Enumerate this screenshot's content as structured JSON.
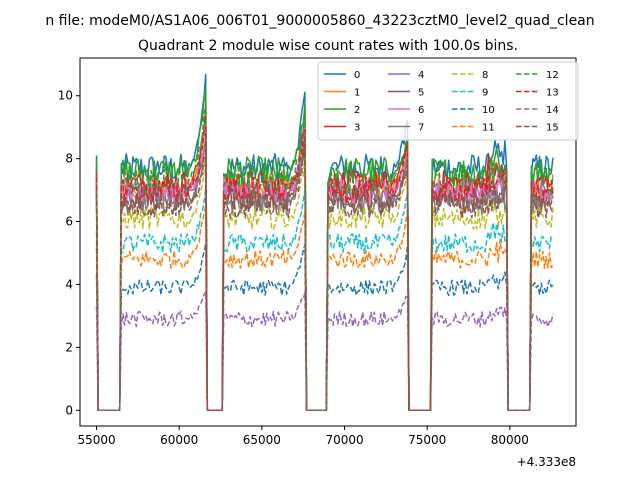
{
  "chart_data": {
    "type": "line",
    "suptitle": "n file: modeM0/AS1A06_006T01_9000005860_43223cztM0_level2_quad_clean",
    "title": "Quadrant 2 module wise count rates with 100.0s bins.",
    "xlabel": "",
    "ylabel": "",
    "x_offset_label": "+4.333e8",
    "xlim": [
      54000,
      84000
    ],
    "ylim": [
      -0.5,
      11.2
    ],
    "x_ticks": [
      55000,
      60000,
      65000,
      70000,
      75000,
      80000
    ],
    "y_ticks": [
      0,
      2,
      4,
      6,
      8,
      10
    ],
    "grid": false,
    "legend_position": "top-right",
    "legend_columns": 4,
    "segments": [
      [
        55000,
        56500
      ],
      [
        56500,
        61600
      ],
      [
        61600,
        62700
      ],
      [
        62700,
        67600
      ],
      [
        67600,
        69000
      ],
      [
        69000,
        73800
      ],
      [
        73800,
        75300
      ],
      [
        75300,
        79800
      ],
      [
        79800,
        81300
      ],
      [
        81300,
        82600
      ]
    ],
    "active_segments": [
      [
        56500,
        61600
      ],
      [
        62700,
        67600
      ],
      [
        69000,
        73800
      ],
      [
        75300,
        79800
      ],
      [
        81300,
        82600
      ]
    ],
    "series": [
      {
        "name": "0",
        "color": "#1f77b4",
        "dash": "solid",
        "level": 7.7,
        "peaks": [
          10.6,
          10.2,
          9.1
        ]
      },
      {
        "name": "1",
        "color": "#ff7f0e",
        "dash": "solid",
        "level": 7.1,
        "peaks": [
          9.3,
          9.4,
          8.4
        ]
      },
      {
        "name": "2",
        "color": "#2ca02c",
        "dash": "solid",
        "level": 7.6,
        "peaks": [
          10.3,
          9.6,
          8.6
        ]
      },
      {
        "name": "3",
        "color": "#d62728",
        "dash": "solid",
        "level": 7.2,
        "peaks": [
          9.4,
          9.2,
          8.5
        ]
      },
      {
        "name": "4",
        "color": "#9467bd",
        "dash": "solid",
        "level": 6.9,
        "peaks": [
          8.9,
          8.8,
          8.2
        ]
      },
      {
        "name": "5",
        "color": "#8c564b",
        "dash": "solid",
        "level": 6.7,
        "peaks": [
          8.7,
          8.6,
          8.0
        ]
      },
      {
        "name": "6",
        "color": "#e377c2",
        "dash": "solid",
        "level": 7.0,
        "peaks": [
          9.0,
          9.0,
          8.3
        ]
      },
      {
        "name": "7",
        "color": "#7f7f7f",
        "dash": "solid",
        "level": 6.6,
        "peaks": [
          8.5,
          8.5,
          7.9
        ]
      },
      {
        "name": "8",
        "color": "#bcbd22",
        "dash": "dashed",
        "level": 6.1,
        "peaks": [
          8.0,
          8.0,
          7.6
        ]
      },
      {
        "name": "9",
        "color": "#17becf",
        "dash": "dashed",
        "level": 5.3,
        "peaks": [
          7.0,
          7.0,
          7.0
        ]
      },
      {
        "name": "10",
        "color": "#1f77b4",
        "dash": "dashed",
        "level": 3.9,
        "peaks": [
          5.3,
          5.3,
          5.1
        ]
      },
      {
        "name": "11",
        "color": "#ff7f0e",
        "dash": "dashed",
        "level": 4.8,
        "peaks": [
          6.6,
          6.4,
          6.2
        ]
      },
      {
        "name": "12",
        "color": "#2ca02c",
        "dash": "dashed",
        "level": 7.3,
        "peaks": [
          9.8,
          9.4,
          8.6
        ]
      },
      {
        "name": "13",
        "color": "#d62728",
        "dash": "dashed",
        "level": 7.0,
        "peaks": [
          9.2,
          9.0,
          8.3
        ]
      },
      {
        "name": "14",
        "color": "#9467bd",
        "dash": "dashed",
        "level": 2.9,
        "peaks": [
          3.8,
          3.8,
          3.7
        ]
      },
      {
        "name": "15",
        "color": "#8c564b",
        "dash": "dashed",
        "level": 6.5,
        "peaks": [
          8.3,
          8.3,
          7.8
        ]
      }
    ]
  }
}
